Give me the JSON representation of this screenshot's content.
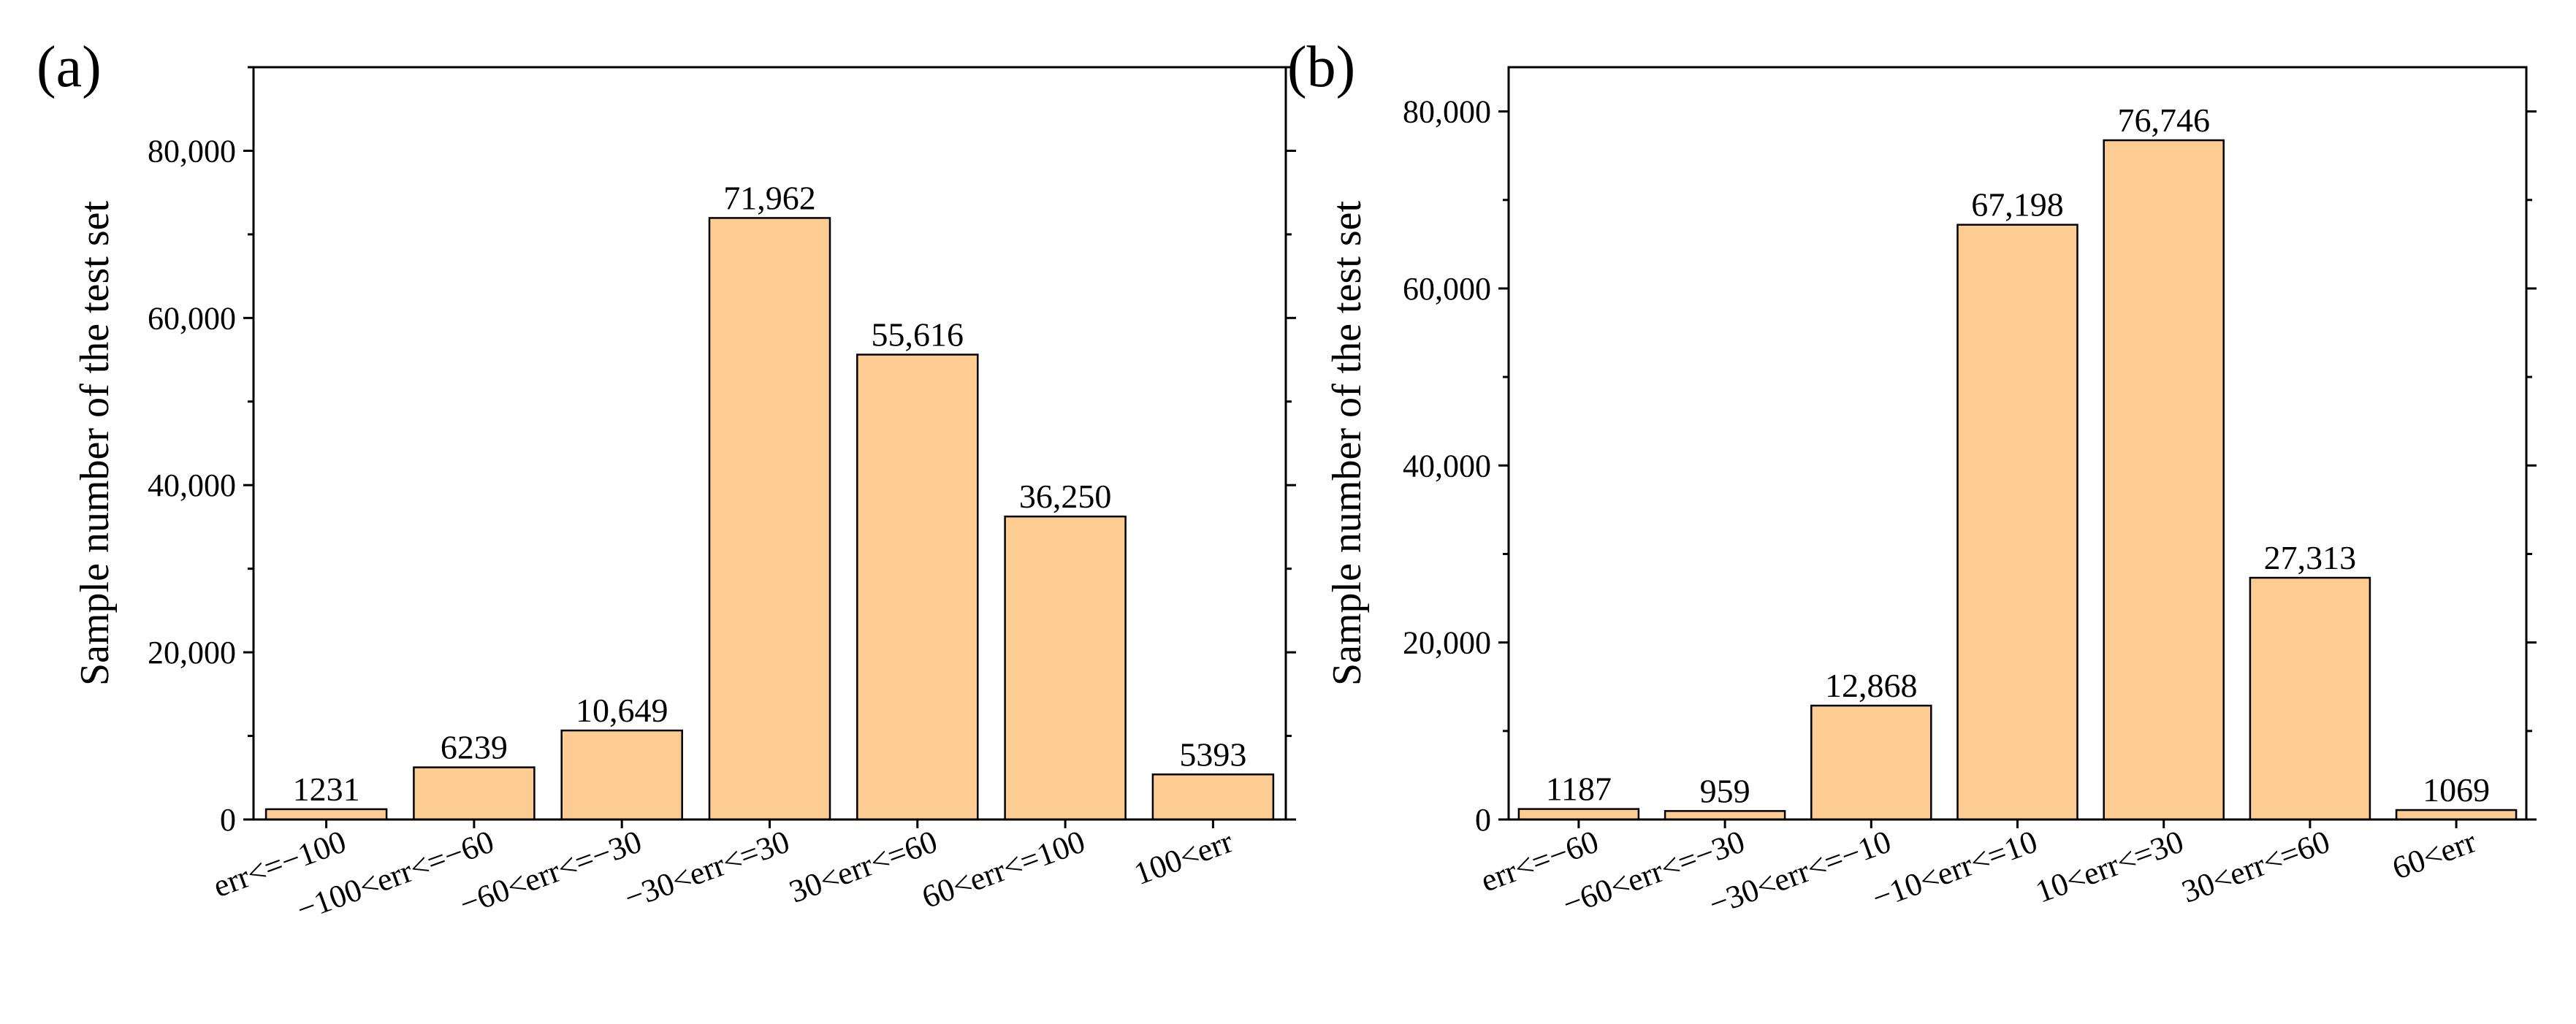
{
  "chart_data": [
    {
      "type": "bar",
      "panel_label": "(a)",
      "ylabel": "Sample number of the test set",
      "xlabel": "",
      "ylim": [
        0,
        90000
      ],
      "yticks": [
        0,
        20000,
        40000,
        60000,
        80000
      ],
      "ytick_labels": [
        "0",
        "20,000",
        "40,000",
        "60,000",
        "80,000"
      ],
      "categories": [
        "err<=−100",
        "−100<err<=−60",
        "−60<err<=−30",
        "−30<err<=30",
        "30<err<=60",
        "60<err<=100",
        "100<err"
      ],
      "values": [
        1231,
        6239,
        10649,
        71962,
        55616,
        36250,
        5393
      ],
      "data_labels": [
        "1231",
        "6239",
        "10,649",
        "71,962",
        "55,616",
        "36,250",
        "5393"
      ],
      "bar_color": "#FDCC92",
      "grid": false
    },
    {
      "type": "bar",
      "panel_label": "(b)",
      "ylabel": "Sample number of the test set",
      "xlabel": "",
      "ylim": [
        0,
        85000
      ],
      "yticks": [
        0,
        20000,
        40000,
        60000,
        80000
      ],
      "ytick_labels": [
        "0",
        "20,000",
        "40,000",
        "60,000",
        "80,000"
      ],
      "categories": [
        "err<=−60",
        "−60<err<=−30",
        "−30<err<=−10",
        "−10<err<=10",
        "10<err<=30",
        "30<err<=60",
        "60<err"
      ],
      "values": [
        1187,
        959,
        12868,
        67198,
        76746,
        27313,
        1069
      ],
      "data_labels": [
        "1187",
        "959",
        "12,868",
        "67,198",
        "76,746",
        "27,313",
        "1069"
      ],
      "bar_color": "#FDCC92",
      "grid": false
    }
  ]
}
